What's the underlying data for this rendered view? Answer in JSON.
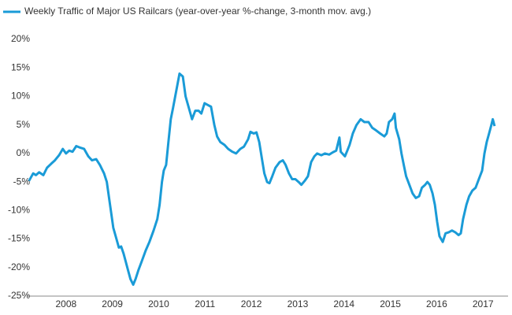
{
  "chart_data": {
    "type": "line",
    "x": [
      2007.7,
      2007.79,
      2007.85,
      2007.92,
      2008.01,
      2008.09,
      2008.18,
      2008.26,
      2008.35,
      2008.43,
      2008.5,
      2008.57,
      2008.64,
      2008.72,
      2008.81,
      2008.89,
      2008.98,
      2009.06,
      2009.15,
      2009.23,
      2009.32,
      2009.38,
      2009.45,
      2009.52,
      2009.59,
      2009.64,
      2009.69,
      2009.74,
      2009.79,
      2009.84,
      2009.89,
      2009.95,
      2010.0,
      2010.06,
      2010.13,
      2010.22,
      2010.3,
      2010.39,
      2010.47,
      2010.52,
      2010.57,
      2010.61,
      2010.66,
      2010.71,
      2010.76,
      2010.81,
      2010.88,
      2010.95,
      2011.02,
      2011.08,
      2011.15,
      2011.22,
      2011.29,
      2011.36,
      2011.42,
      2011.49,
      2011.56,
      2011.63,
      2011.7,
      2011.76,
      2011.83,
      2011.92,
      2012.0,
      2012.09,
      2012.17,
      2012.26,
      2012.34,
      2012.43,
      2012.48,
      2012.55,
      2012.61,
      2012.67,
      2012.73,
      2012.78,
      2012.84,
      2012.89,
      2012.95,
      2013.02,
      2013.11,
      2013.18,
      2013.24,
      2013.31,
      2013.38,
      2013.45,
      2013.52,
      2013.58,
      2013.65,
      2013.72,
      2013.79,
      2013.86,
      2013.92,
      2014.01,
      2014.09,
      2014.18,
      2014.26,
      2014.33,
      2014.4,
      2014.43,
      2014.52,
      2014.57,
      2014.62,
      2014.69,
      2014.77,
      2014.86,
      2014.94,
      2015.03,
      2015.11,
      2015.2,
      2015.28,
      2015.37,
      2015.42,
      2015.47,
      2015.54,
      2015.59,
      2015.62,
      2015.69,
      2015.74,
      2015.79,
      2015.84,
      2015.91,
      2015.98,
      2016.05,
      2016.12,
      2016.18,
      2016.25,
      2016.3,
      2016.35,
      2016.41,
      2016.46,
      2016.51,
      2016.56,
      2016.63,
      2016.69,
      2016.76,
      2016.83,
      2016.9,
      2016.97,
      2017.02,
      2017.07,
      2017.14,
      2017.2,
      2017.27,
      2017.34,
      2017.41,
      2017.48,
      2017.53,
      2017.58,
      2017.63,
      2017.68,
      2017.71,
      2017.75
    ],
    "series": [
      {
        "name": "Weekly Traffic of Major US Railcars (year-over-year %-change, 3-month mov. avg.)",
        "color": "#1a9bd7",
        "values": [
          -4.8,
          -3.5,
          -3.8,
          -3.3,
          -3.8,
          -2.5,
          -1.8,
          -1.2,
          -0.3,
          0.8,
          0,
          0.5,
          0.3,
          1.3,
          1.0,
          0.8,
          -0.5,
          -1.2,
          -1.0,
          -2.0,
          -3.5,
          -5,
          -9,
          -13,
          -15,
          -16.5,
          -16.3,
          -17.5,
          -19,
          -20.5,
          -22,
          -23,
          -22,
          -20.5,
          -19,
          -17,
          -15.5,
          -13.5,
          -11.5,
          -9,
          -5,
          -3,
          -2,
          2,
          6,
          8,
          11,
          14,
          13.5,
          10,
          8,
          6,
          7.5,
          7.5,
          7,
          8.8,
          8.5,
          8.2,
          5,
          3,
          2,
          1.5,
          0.8,
          0.3,
          0,
          0.8,
          1.2,
          2.5,
          3.8,
          3.5,
          3.7,
          2,
          -1,
          -3.5,
          -5,
          -5.2,
          -4,
          -2.5,
          -1.5,
          -1.2,
          -2,
          -3.5,
          -4.5,
          -4.5,
          -5,
          -5.5,
          -4.8,
          -4,
          -1.5,
          -0.5,
          0,
          -0.3,
          0,
          -0.2,
          0.2,
          0.5,
          2.8,
          0.3,
          -0.5,
          0.5,
          1.5,
          3.5,
          5,
          6,
          5.5,
          5.5,
          4.5,
          4,
          3.5,
          3,
          3.5,
          5.5,
          6,
          7,
          4.5,
          2.5,
          0,
          -2,
          -4,
          -5.5,
          -7,
          -7.8,
          -7.5,
          -6,
          -5.5,
          -5,
          -5.5,
          -7,
          -9,
          -12,
          -14.5,
          -15.5,
          -14,
          -13.8,
          -13.5,
          -13.8,
          -14.3,
          -14,
          -11.5,
          -9,
          -7.5,
          -6.5,
          -6,
          -4.5,
          -3,
          0,
          2,
          3.5,
          5,
          6,
          4.8
        ]
      }
    ],
    "xlim": [
      2007.67,
      2018.04
    ],
    "xticks": [
      {
        "value": 2008.5,
        "label": "2008"
      },
      {
        "value": 2009.5,
        "label": "2009"
      },
      {
        "value": 2010.5,
        "label": "2010"
      },
      {
        "value": 2011.5,
        "label": "2011"
      },
      {
        "value": 2012.5,
        "label": "2012"
      },
      {
        "value": 2013.5,
        "label": "2013"
      },
      {
        "value": 2014.5,
        "label": "2014"
      },
      {
        "value": 2015.5,
        "label": "2015"
      },
      {
        "value": 2016.5,
        "label": "2016"
      },
      {
        "value": 2017.5,
        "label": "2017"
      }
    ],
    "ylim": [
      -25,
      20
    ],
    "yticks": [
      {
        "value": -25,
        "label": "-25%"
      },
      {
        "value": -20,
        "label": "-20%"
      },
      {
        "value": -15,
        "label": "-15%"
      },
      {
        "value": -10,
        "label": "-10%"
      },
      {
        "value": -5,
        "label": "-5%"
      },
      {
        "value": 0,
        "label": "0%"
      },
      {
        "value": 5,
        "label": "5%"
      },
      {
        "value": 10,
        "label": "10%"
      },
      {
        "value": 15,
        "label": "15%"
      },
      {
        "value": 20,
        "label": "20%"
      }
    ],
    "grid": false,
    "legend": "top-left"
  }
}
